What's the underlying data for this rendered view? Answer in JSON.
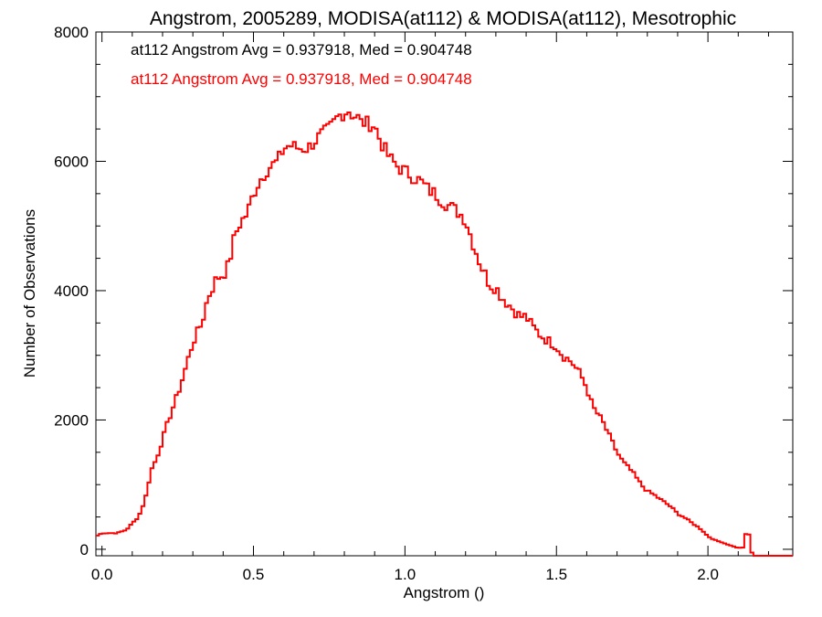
{
  "chart_data": {
    "type": "line",
    "title": "Angstrom, 2005289, MODISA(at112) & MODISA(at112), Mesotrophic",
    "xlabel": "Angstrom ()",
    "ylabel": "Number of Observations",
    "xlim": [
      -0.02,
      2.28
    ],
    "ylim": [
      -100,
      8000
    ],
    "xticks": [
      0.0,
      0.5,
      1.0,
      1.5,
      2.0
    ],
    "xtick_labels": [
      "0.0",
      "0.5",
      "1.0",
      "1.5",
      "2.0"
    ],
    "yticks": [
      0,
      2000,
      4000,
      6000,
      8000
    ],
    "ytick_labels": [
      "0",
      "2000",
      "4000",
      "6000",
      "8000"
    ],
    "grid": false,
    "step": "histogram",
    "bin_width": 0.01,
    "legend": [
      {
        "text": "at112 Angstrom Avg = 0.937918, Med = 0.904748",
        "color": "#000000"
      },
      {
        "text": "at112 Angstrom Avg = 0.937918, Med = 0.904748",
        "color": "#ff0000"
      }
    ],
    "series": [
      {
        "color": "#ff0000",
        "x": [
          -0.02,
          0.0,
          0.05,
          0.08,
          0.1,
          0.12,
          0.13,
          0.15,
          0.16,
          0.18,
          0.2,
          0.22,
          0.25,
          0.27,
          0.3,
          0.33,
          0.35,
          0.38,
          0.4,
          0.42,
          0.43,
          0.45,
          0.48,
          0.5,
          0.52,
          0.55,
          0.58,
          0.6,
          0.62,
          0.65,
          0.68,
          0.7,
          0.72,
          0.75,
          0.78,
          0.8,
          0.82,
          0.83,
          0.84,
          0.85,
          0.87,
          0.9,
          0.92,
          0.95,
          0.98,
          1.0,
          1.03,
          1.05,
          1.08,
          1.1,
          1.12,
          1.15,
          1.18,
          1.2,
          1.22,
          1.25,
          1.28,
          1.3,
          1.32,
          1.35,
          1.38,
          1.4,
          1.42,
          1.45,
          1.48,
          1.5,
          1.52,
          1.55,
          1.58,
          1.6,
          1.62,
          1.65,
          1.68,
          1.7,
          1.72,
          1.75,
          1.78,
          1.8,
          1.82,
          1.85,
          1.88,
          1.9,
          1.92,
          1.95,
          1.98,
          2.0,
          2.02,
          2.05,
          2.08,
          2.1,
          2.12,
          2.13,
          2.14,
          2.15,
          2.2,
          2.28
        ],
        "y": [
          200,
          250,
          250,
          300,
          400,
          500,
          600,
          900,
          1200,
          1400,
          1700,
          2000,
          2400,
          2700,
          3200,
          3500,
          3900,
          4200,
          4250,
          4400,
          4700,
          5000,
          5200,
          5500,
          5700,
          5900,
          6000,
          6200,
          6250,
          6200,
          6200,
          6300,
          6400,
          6500,
          6700,
          6750,
          6800,
          6650,
          6750,
          6600,
          6600,
          6550,
          6300,
          6050,
          5900,
          5850,
          5750,
          5700,
          5550,
          5500,
          5400,
          5300,
          5200,
          5100,
          4800,
          4400,
          4100,
          4050,
          3900,
          3750,
          3600,
          3600,
          3450,
          3300,
          3200,
          3150,
          3000,
          2900,
          2700,
          2500,
          2200,
          2000,
          1700,
          1500,
          1350,
          1200,
          1000,
          900,
          850,
          750,
          650,
          550,
          500,
          400,
          300,
          200,
          150,
          100,
          50,
          20,
          30,
          450,
          0,
          -100,
          -100,
          -100
        ]
      }
    ]
  }
}
